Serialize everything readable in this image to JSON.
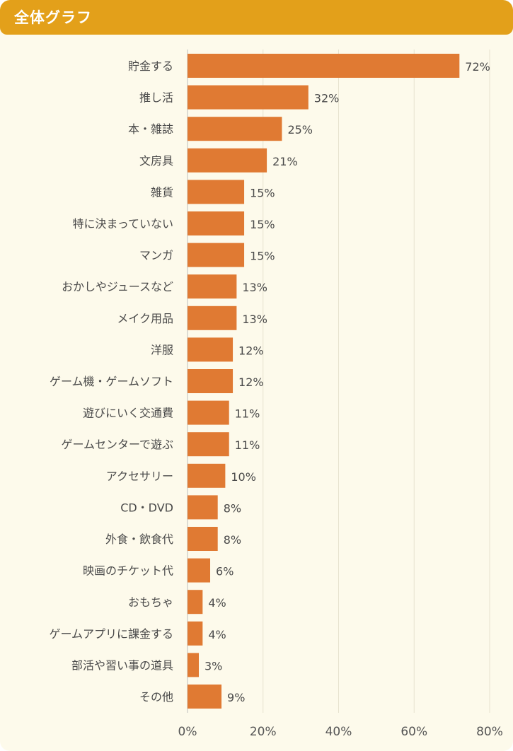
{
  "header": {
    "title": "全体グラフ"
  },
  "colors": {
    "header": "#e3a01a",
    "bar": "#e07a33",
    "background": "#fdfaeb"
  },
  "chart_data": {
    "type": "bar",
    "orientation": "horizontal",
    "categories": [
      "貯金する",
      "推し活",
      "本・雑誌",
      "文房具",
      "雑貨",
      "特に決まっていない",
      "マンガ",
      "おかしやジュースなど",
      "メイク用品",
      "洋服",
      "ゲーム機・ゲームソフト",
      "遊びにいく交通費",
      "ゲームセンターで遊ぶ",
      "アクセサリー",
      "CD・DVD",
      "外食・飲食代",
      "映画のチケット代",
      "おもちゃ",
      "ゲームアプリに課金する",
      "部活や習い事の道具",
      "その他"
    ],
    "values": [
      72,
      32,
      25,
      21,
      15,
      15,
      15,
      13,
      13,
      12,
      12,
      11,
      11,
      10,
      8,
      8,
      6,
      4,
      4,
      3,
      9
    ],
    "value_labels": [
      "72%",
      "32%",
      "25%",
      "21%",
      "15%",
      "15%",
      "15%",
      "13%",
      "13%",
      "12%",
      "12%",
      "11%",
      "11%",
      "10%",
      "8%",
      "8%",
      "6%",
      "4%",
      "4%",
      "3%",
      "9%"
    ],
    "xlim": [
      0,
      80
    ],
    "x_ticks": [
      0,
      20,
      40,
      60,
      80
    ],
    "x_tick_labels": [
      "0%",
      "20%",
      "40%",
      "60%",
      "80%"
    ],
    "grid": true
  }
}
